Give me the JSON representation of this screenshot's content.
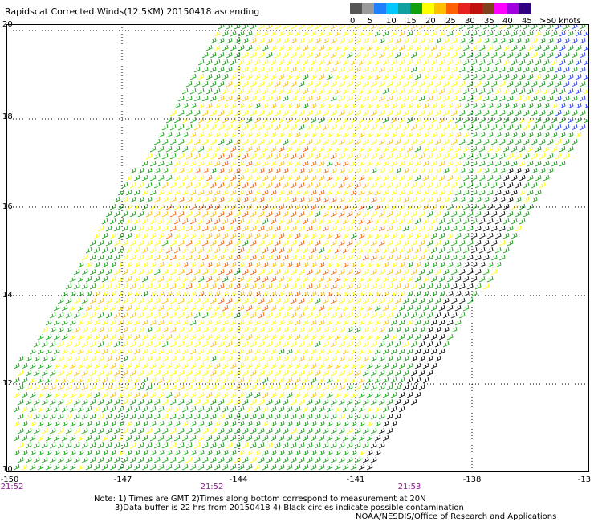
{
  "title": "Rapidscat Corrected Winds(12.5KM) 20150418 ascending",
  "legend": {
    "colors": [
      "#555555",
      "#9a9a9a",
      "#1e7fff",
      "#00c8ff",
      "#10a0a0",
      "#10a010",
      "#ffff00",
      "#ffc000",
      "#ff6000",
      "#e82020",
      "#c01010",
      "#804020",
      "#ff00ff",
      "#a000e0",
      "#300080"
    ],
    "labels": [
      "0",
      "5",
      "10",
      "15",
      "20",
      "25",
      "30",
      "35",
      "40",
      "45",
      ">50 knots"
    ]
  },
  "y_labels": [
    "20",
    "18",
    "16",
    "14",
    "12",
    "10"
  ],
  "x_labels": [
    "-150",
    "-147",
    "-144",
    "-141",
    "-138",
    "-13"
  ],
  "time_labels": [
    "21:52",
    "21:52",
    "21:53"
  ],
  "notes": [
    "Note: 1) Times are GMT 2)Times along bottom correspond to measurement at 20N",
    "3)Data buffer is 22 hrs from 20150418 4) Black circles indicate possible contamination",
    "NOAA/NESDIS/Office of Research and Applications"
  ]
}
